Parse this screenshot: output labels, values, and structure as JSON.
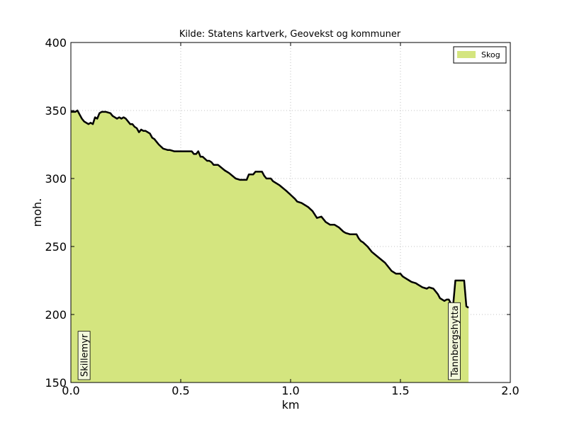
{
  "chart_data": {
    "type": "area",
    "title": "Kilde: Statens kartverk, Geovekst og kommuner",
    "xlabel": "km",
    "ylabel": "moh.",
    "xlim": [
      0,
      2.0
    ],
    "ylim": [
      150,
      400
    ],
    "x_ticks": [
      "0.0",
      "0.5",
      "1.0",
      "1.5",
      "2.0"
    ],
    "y_ticks": [
      "150",
      "200",
      "250",
      "300",
      "350",
      "400"
    ],
    "grid": true,
    "legend_position": "top-right",
    "colors": {
      "fill": "#d4e57f",
      "line": "#000000"
    },
    "series": [
      {
        "name": "Skog",
        "x": [
          0.0,
          0.02,
          0.03,
          0.04,
          0.05,
          0.06,
          0.08,
          0.09,
          0.1,
          0.11,
          0.12,
          0.13,
          0.14,
          0.16,
          0.18,
          0.19,
          0.2,
          0.21,
          0.22,
          0.23,
          0.24,
          0.25,
          0.27,
          0.28,
          0.29,
          0.3,
          0.31,
          0.32,
          0.33,
          0.34,
          0.36,
          0.37,
          0.38,
          0.39,
          0.4,
          0.42,
          0.44,
          0.45,
          0.47,
          0.5,
          0.52,
          0.55,
          0.56,
          0.57,
          0.58,
          0.59,
          0.6,
          0.62,
          0.63,
          0.64,
          0.65,
          0.67,
          0.7,
          0.72,
          0.75,
          0.77,
          0.78,
          0.8,
          0.81,
          0.82,
          0.83,
          0.84,
          0.85,
          0.87,
          0.88,
          0.89,
          0.9,
          0.91,
          0.92,
          0.95,
          0.98,
          1.0,
          1.02,
          1.03,
          1.05,
          1.08,
          1.1,
          1.12,
          1.14,
          1.16,
          1.18,
          1.19,
          1.2,
          1.22,
          1.24,
          1.25,
          1.27,
          1.28,
          1.3,
          1.31,
          1.32,
          1.33,
          1.35,
          1.37,
          1.4,
          1.43,
          1.46,
          1.48,
          1.5,
          1.51,
          1.52,
          1.54,
          1.55,
          1.57,
          1.58,
          1.6,
          1.62,
          1.63,
          1.65,
          1.67,
          1.68,
          1.7,
          1.71,
          1.72,
          1.73,
          1.74,
          1.75,
          1.76,
          1.77,
          1.78,
          1.79,
          1.8,
          1.81
        ],
        "y": [
          349,
          349,
          350,
          347,
          344,
          342,
          340,
          341,
          340,
          345,
          344,
          348,
          349,
          349,
          348,
          346,
          345,
          344,
          345,
          344,
          345,
          344,
          340,
          340,
          338,
          337,
          334,
          336,
          335,
          335,
          333,
          330,
          329,
          327,
          325,
          322,
          321,
          321,
          320,
          320,
          320,
          320,
          318,
          318,
          320,
          316,
          316,
          313,
          313,
          312,
          310,
          310,
          306,
          304,
          300,
          299,
          299,
          299,
          303,
          303,
          303,
          305,
          305,
          305,
          302,
          300,
          300,
          300,
          298,
          295,
          291,
          288,
          285,
          283,
          282,
          279,
          276,
          271,
          272,
          268,
          266,
          266,
          266,
          264,
          261,
          260,
          259,
          259,
          259,
          256,
          254,
          253,
          250,
          246,
          242,
          238,
          232,
          230,
          230,
          228,
          227,
          225,
          224,
          223,
          222,
          220,
          219,
          220,
          219,
          215,
          212,
          210,
          211,
          211,
          208,
          207,
          225,
          225,
          225,
          225,
          225,
          206,
          205
        ]
      }
    ],
    "annotations": [
      {
        "x": 0.06,
        "label": "Skillemyr"
      },
      {
        "x": 1.745,
        "label": "Tannbergshytta"
      }
    ]
  }
}
